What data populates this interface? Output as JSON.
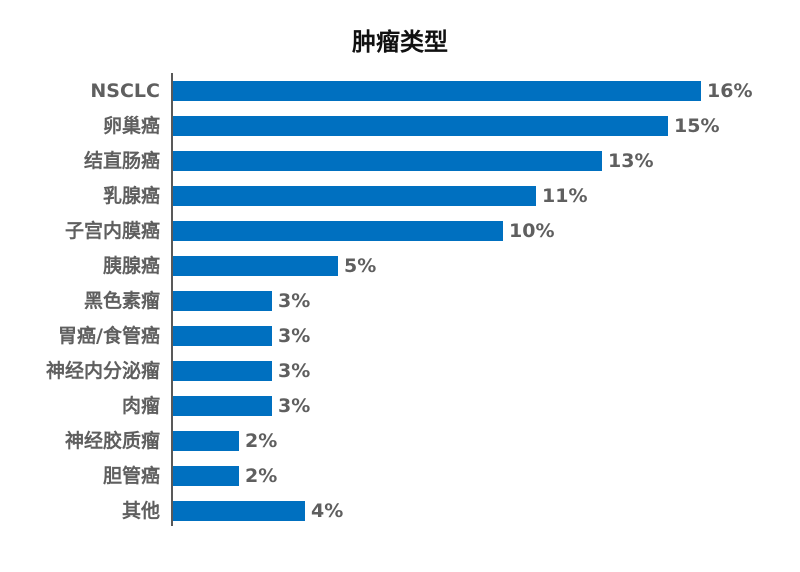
{
  "chart_data": {
    "type": "bar",
    "orientation": "horizontal",
    "title": "肿瘤类型",
    "xlabel": "",
    "ylabel": "",
    "categories": [
      "NSCLC",
      "卵巢癌",
      "结直肠癌",
      "乳腺癌",
      "子宫内膜癌",
      "胰腺癌",
      "黑色素瘤",
      "胃癌/食管癌",
      "神经内分泌瘤",
      "肉瘤",
      "神经胶质瘤",
      "胆管癌",
      "其他"
    ],
    "values": [
      16,
      15,
      13,
      11,
      10,
      5,
      3,
      3,
      3,
      3,
      2,
      2,
      4
    ],
    "value_labels": [
      "16%",
      "15%",
      "13%",
      "11%",
      "10%",
      "5%",
      "3%",
      "3%",
      "3%",
      "3%",
      "2%",
      "2%",
      "4%"
    ],
    "xlim": [
      0,
      16
    ],
    "grid": false,
    "bar_color": "#0070C0"
  }
}
